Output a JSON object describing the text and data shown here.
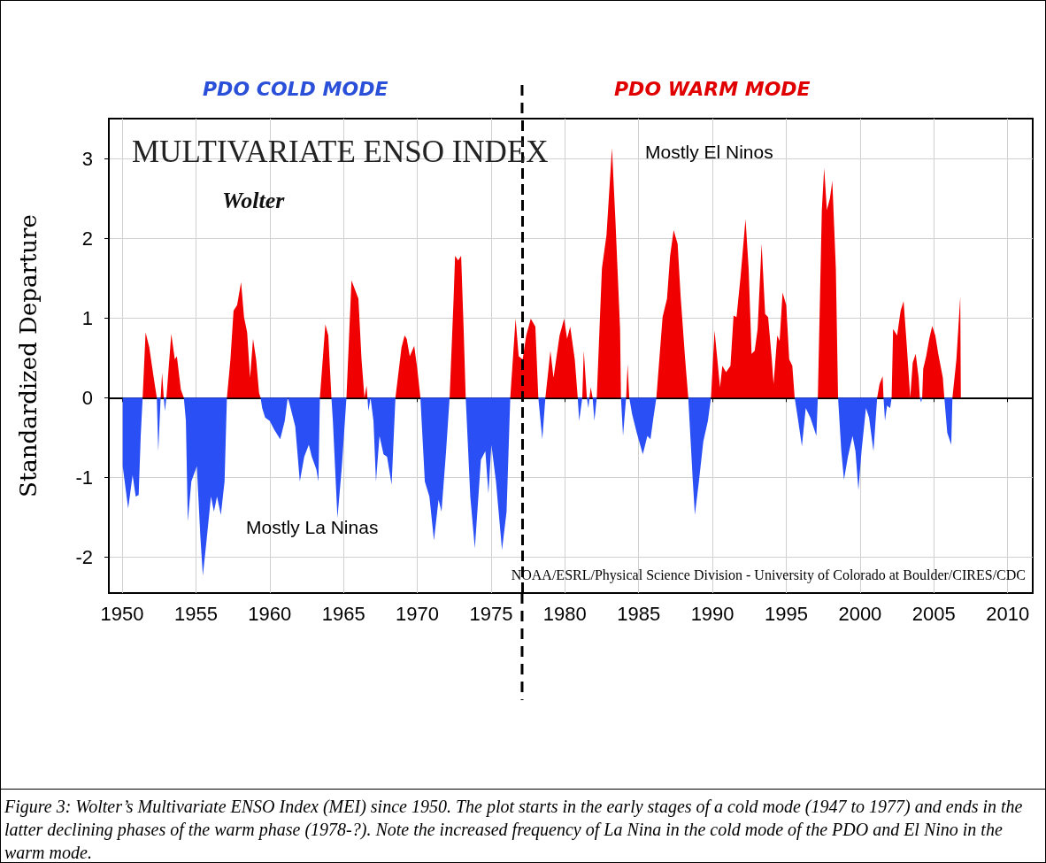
{
  "chart_data": {
    "type": "area",
    "title": "MULTIVARIATE ENSO INDEX",
    "subtitle": "Wolter",
    "ylabel": "Standardized Departure",
    "annotations": [
      "PDO COLD MODE",
      "PDO WARM MODE",
      "Mostly El Ninos",
      "Mostly La Ninas",
      "NOAA/ESRL/Physical Science Division - University of Colorado at Boulder/CIRES/CDC",
      "Figure 3: Wolter’s Multivariate ENSO Index (MEI) since 1950. The plot starts in the early stages of a cold mode (1947 to 1977) and ends in the latter declining phases of the warm phase (1978-?). Note the increased frequency of La Nina in the cold mode of the PDO and El Nino in the warm mode."
    ],
    "series": [
      {
        "color": "#f00000",
        "x": [
          1951.39,
          1951.59,
          1951.84,
          1952.14,
          1952.35,
          1952.61,
          1952.71,
          1952.82,
          1953.0,
          1953.33,
          1953.57,
          1953.71,
          1953.98,
          1954.18,
          1957.1,
          1957.34,
          1957.55,
          1957.79,
          1958.06,
          1958.26,
          1958.47,
          1958.67,
          1958.87,
          1959.08,
          1959.28,
          1959.38,
          1961.22,
          1963.4,
          1963.77,
          1963.97,
          1964.18,
          1965.2,
          1965.54,
          1965.81,
          1966.01,
          1966.22,
          1966.42,
          1966.56,
          1966.62,
          1966.83,
          1968.52,
          1968.93,
          1969.14,
          1969.28,
          1969.49,
          1969.79,
          1970.0,
          1970.21,
          1972.19,
          1972.46,
          1972.56,
          1972.77,
          1972.97,
          1973.14,
          1973.28,
          1976.3,
          1976.66,
          1976.87,
          1977.14,
          1977.38,
          1977.69,
          1978.0,
          1978.2,
          1978.68,
          1979.02,
          1979.23,
          1979.64,
          1979.95,
          1980.15,
          1980.36,
          1980.67,
          1980.87,
          1981.18,
          1981.28,
          1981.49,
          1981.67,
          1981.75,
          1981.88,
          1982.16,
          1982.51,
          1982.82,
          1983.19,
          1983.43,
          1983.74,
          1983.8,
          1984.15,
          1984.25,
          1984.36,
          1986.2,
          1986.62,
          1986.92,
          1987.13,
          1987.37,
          1987.64,
          1987.84,
          1988.15,
          1988.36,
          1989.9,
          1990.14,
          1990.31,
          1990.51,
          1990.67,
          1990.92,
          1991.22,
          1991.43,
          1991.63,
          1991.9,
          1992.24,
          1992.45,
          1992.65,
          1992.86,
          1993.06,
          1993.33,
          1993.57,
          1993.77,
          1994.02,
          1994.14,
          1994.39,
          1994.55,
          1994.75,
          1995.0,
          1995.2,
          1995.41,
          1995.57,
          1997.14,
          1997.41,
          1997.57,
          1997.75,
          1997.96,
          1998.12,
          1998.36,
          1998.51,
          2001.16,
          2001.32,
          2001.53,
          2001.59,
          2002.14,
          2002.24,
          2002.51,
          2002.75,
          2002.95,
          2003.16,
          2003.4,
          2003.57,
          2003.77,
          2003.97,
          2004.05,
          2004.21,
          2004.28,
          2004.48,
          2004.69,
          2004.89,
          2005.1,
          2005.3,
          2005.61,
          2005.71,
          2006.26,
          2006.53,
          2006.79,
          2006.83
        ],
        "values": [
          0,
          0.82,
          0.63,
          0.25,
          0,
          0,
          0.31,
          0,
          0,
          0.8,
          0.48,
          0.52,
          0.1,
          0,
          0,
          0.48,
          1.09,
          1.16,
          1.45,
          1.01,
          0.82,
          0.25,
          0.74,
          0.48,
          0.06,
          0,
          0,
          0,
          0.92,
          0.78,
          0,
          0,
          1.47,
          1.34,
          1.24,
          0.48,
          0,
          0.15,
          0,
          0,
          0,
          0.63,
          0.78,
          0.74,
          0.52,
          0.65,
          0.36,
          0,
          0,
          1.24,
          1.78,
          1.72,
          1.78,
          0.86,
          0,
          0,
          0.99,
          0.52,
          0.48,
          0.78,
          0.99,
          0.89,
          0,
          0,
          0.59,
          0.25,
          0.78,
          0.99,
          0.74,
          0.89,
          0.48,
          0,
          0,
          0.59,
          0,
          0,
          0.13,
          0,
          0,
          1.62,
          2.04,
          3.13,
          2.2,
          0.86,
          0,
          0,
          0.42,
          0,
          0,
          1.01,
          1.24,
          1.78,
          2.1,
          1.93,
          1.28,
          0.48,
          0,
          0,
          0.84,
          0.52,
          0.13,
          0.4,
          0.32,
          0.4,
          1.03,
          1.01,
          1.51,
          2.24,
          1.62,
          0.55,
          0.59,
          0.86,
          1.93,
          1.05,
          1.01,
          0.48,
          0.17,
          0.78,
          0.71,
          1.32,
          1.16,
          0.48,
          0.4,
          0,
          0,
          2.35,
          2.88,
          2.35,
          2.5,
          2.72,
          1.62,
          0,
          0,
          0.17,
          0.27,
          0,
          0,
          0.86,
          0.78,
          1.09,
          1.21,
          0.67,
          0,
          0.44,
          0.55,
          0.25,
          0,
          0,
          0.36,
          0.52,
          0.74,
          0.9,
          0.78,
          0.55,
          0.25,
          0,
          0,
          0.48,
          1.27,
          0
        ]
      },
      {
        "color": "#2a4ff5",
        "x": [
          1950.04,
          1950.41,
          1950.71,
          1950.92,
          1951.12,
          1951.26,
          1951.39,
          1952.35,
          1952.45,
          1952.61,
          1952.82,
          1952.9,
          1953.0,
          1954.18,
          1954.32,
          1954.45,
          1954.69,
          1955.06,
          1955.3,
          1955.47,
          1955.71,
          1956.02,
          1956.22,
          1956.43,
          1956.69,
          1956.94,
          1957.1,
          1959.38,
          1959.49,
          1959.69,
          1960.0,
          1960.3,
          1960.71,
          1961.02,
          1961.22,
          1961.32,
          1961.73,
          1962.04,
          1962.34,
          1962.65,
          1962.85,
          1963.16,
          1963.3,
          1963.4,
          1964.18,
          1964.28,
          1964.59,
          1964.89,
          1965.2,
          1966.62,
          1966.69,
          1966.83,
          1967.03,
          1967.2,
          1967.44,
          1967.71,
          1967.95,
          1968.26,
          1968.52,
          1970.21,
          1970.51,
          1970.82,
          1971.13,
          1971.44,
          1971.64,
          1971.95,
          1972.19,
          1973.28,
          1973.59,
          1973.9,
          1974.31,
          1974.61,
          1974.82,
          1975.02,
          1975.33,
          1975.74,
          1976.05,
          1976.3,
          1978.2,
          1978.47,
          1978.68,
          1980.87,
          1980.97,
          1981.18,
          1981.49,
          1981.59,
          1981.67,
          1981.88,
          1982.0,
          1982.16,
          1983.8,
          1983.94,
          1984.15,
          1984.36,
          1984.56,
          1984.87,
          1985.28,
          1985.59,
          1985.8,
          1986.0,
          1986.2,
          1988.36,
          1988.67,
          1988.81,
          1989.08,
          1989.38,
          1989.69,
          1989.9,
          1995.57,
          1995.81,
          1996.06,
          1996.32,
          1996.63,
          1997.04,
          1997.14,
          1998.51,
          1998.73,
          1998.91,
          1999.18,
          1999.49,
          1999.69,
          1999.89,
          2000.1,
          2000.4,
          2000.61,
          2000.91,
          2001.16,
          2001.59,
          2001.69,
          2001.83,
          2002.04,
          2002.14,
          2004.05,
          2004.14,
          2004.21,
          2005.71,
          2005.91,
          2006.18,
          2006.26
        ],
        "values": [
          -0.86,
          -1.39,
          -0.97,
          -1.24,
          -1.22,
          -0.48,
          0,
          0,
          -0.67,
          0,
          0,
          -0.17,
          0,
          0,
          -0.29,
          -1.55,
          -1.05,
          -0.86,
          -1.74,
          -2.23,
          -1.81,
          -1.24,
          -1.43,
          -1.24,
          -1.47,
          -1.05,
          0,
          0,
          -0.13,
          -0.25,
          -0.29,
          -0.4,
          -0.52,
          -0.29,
          0,
          -0.06,
          -0.36,
          -1.05,
          -0.74,
          -0.59,
          -0.74,
          -0.9,
          -1.05,
          0,
          0,
          -0.29,
          -1.51,
          -0.86,
          0,
          0,
          -0.17,
          0,
          -0.29,
          -1.05,
          -0.48,
          -0.71,
          -0.74,
          -1.09,
          0,
          0,
          -1.05,
          -1.24,
          -1.79,
          -1.28,
          -1.43,
          -0.67,
          0,
          0,
          -1.24,
          -1.89,
          -0.78,
          -0.67,
          -1.2,
          -0.59,
          -1.05,
          -1.91,
          -1.43,
          0,
          0,
          -0.52,
          0,
          0,
          -0.29,
          0,
          0,
          -0.13,
          0,
          0,
          -0.29,
          0,
          0,
          -0.48,
          0,
          0,
          -0.21,
          -0.44,
          -0.71,
          -0.48,
          -0.52,
          -0.25,
          0,
          0,
          -1.05,
          -1.47,
          -1.05,
          -0.55,
          -0.29,
          0,
          0,
          -0.29,
          -0.61,
          -0.13,
          -0.25,
          -0.48,
          0,
          0,
          -0.67,
          -1.03,
          -0.74,
          -0.48,
          -0.67,
          -1.16,
          -0.67,
          -0.13,
          -0.25,
          -0.67,
          0,
          0,
          -0.29,
          -0.1,
          -0.13,
          0,
          0,
          -0.06,
          0,
          0,
          -0.44,
          -0.59,
          0
        ]
      }
    ],
    "ref_lines": [
      {
        "axis": "x",
        "value": 1977.1,
        "color": "#000000",
        "line_style": "dashed"
      }
    ],
    "xlim": [
      1949.1,
      2011.7
    ],
    "xticks": [
      1950,
      1955,
      1960,
      1965,
      1970,
      1975,
      1980,
      1985,
      1990,
      1995,
      2000,
      2005,
      2010
    ],
    "ylim": [
      -2.45,
      3.5
    ],
    "yticks": [
      -2,
      -1,
      0,
      1,
      2,
      3
    ],
    "grid": true
  }
}
